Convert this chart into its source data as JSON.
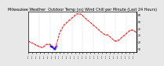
{
  "title": "Milwaukee Weather  Outdoor Temp (vs) Wind Chill per Minute (Last 24 Hours)",
  "title_fontsize": 3.5,
  "bg_color": "#e8e8e8",
  "plot_bg_color": "#ffffff",
  "line_color_red": "#ff0000",
  "line_color_blue": "#0000ff",
  "x_count": 140,
  "temp_values": [
    22,
    21,
    20,
    20,
    19,
    19,
    18,
    18,
    17,
    16,
    16,
    15,
    15,
    14,
    14,
    13,
    13,
    12,
    12,
    13,
    14,
    15,
    16,
    17,
    17,
    17,
    17,
    17,
    17,
    16,
    15,
    14,
    13,
    12,
    12,
    14,
    17,
    21,
    25,
    29,
    33,
    36,
    38,
    40,
    42,
    44,
    46,
    47,
    48,
    49,
    50,
    51,
    52,
    53,
    54,
    55,
    56,
    57,
    58,
    59,
    60,
    61,
    62,
    62,
    62,
    62,
    62,
    62,
    61,
    60,
    59,
    58,
    57,
    56,
    55,
    54,
    53,
    52,
    51,
    50,
    49,
    48,
    47,
    46,
    45,
    44,
    43,
    42,
    41,
    40,
    39,
    38,
    37,
    36,
    35,
    34,
    33,
    32,
    32,
    31,
    31,
    31,
    31,
    30,
    29,
    28,
    27,
    26,
    25,
    24,
    23,
    22,
    22,
    22,
    22,
    23,
    23,
    24,
    25,
    26,
    27,
    28,
    29,
    30,
    31,
    32,
    33,
    34,
    35,
    36,
    37,
    38,
    38,
    38,
    38,
    38,
    37,
    36,
    35,
    34
  ],
  "wind_values": [
    16,
    15,
    14,
    14,
    13,
    13,
    12,
    12,
    11,
    10,
    10,
    9,
    9,
    8,
    8,
    7,
    7,
    6,
    6,
    8,
    10,
    12,
    14,
    15,
    15,
    15,
    15,
    15,
    15,
    14,
    13,
    12,
    11,
    10,
    10,
    12,
    15,
    19,
    23,
    27,
    31,
    34,
    36,
    38,
    40,
    42,
    44,
    45,
    46,
    47,
    48,
    49,
    50,
    51,
    52,
    53,
    54,
    55,
    56,
    57,
    58,
    59,
    60,
    60,
    60,
    60,
    60,
    60,
    59,
    58,
    57,
    56,
    55,
    54,
    53,
    52,
    51,
    50,
    49,
    48,
    47,
    46,
    45,
    44,
    43,
    42,
    41,
    40,
    39,
    38,
    37,
    36,
    35,
    34,
    33,
    32,
    31,
    30,
    30,
    29,
    29,
    29,
    29,
    28,
    27,
    26,
    25,
    24,
    23,
    22,
    21,
    20,
    20,
    20,
    20,
    21,
    21,
    22,
    23,
    24,
    25,
    26,
    27,
    28,
    29,
    30,
    31,
    32,
    33,
    34,
    35,
    36,
    36,
    36,
    36,
    36,
    35,
    34,
    33,
    32
  ],
  "xlim": [
    0,
    139
  ],
  "ylim": [
    5,
    65
  ],
  "ytick_values": [
    10,
    20,
    30,
    40,
    50,
    60
  ],
  "ytick_labels": [
    "10",
    "20",
    "30",
    "40",
    "50",
    "60"
  ],
  "blue_segment_start": 28,
  "blue_segment_end": 36,
  "marker_size": 0.8,
  "linewidth": 0.6,
  "vline_positions": [
    0,
    14,
    28,
    42,
    56,
    70,
    84,
    98,
    112,
    126,
    139
  ]
}
